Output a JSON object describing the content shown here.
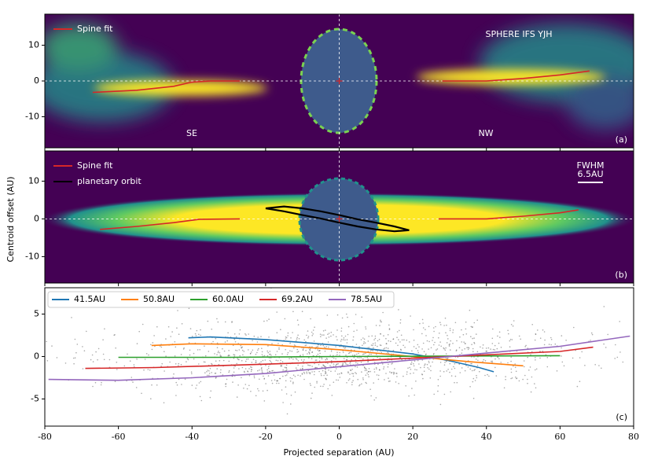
{
  "chart_data": [
    {
      "type": "line",
      "xlim": [
        -80,
        80
      ],
      "xticks": [
        -80,
        -60,
        -40,
        -20,
        0,
        20,
        40,
        60,
        80
      ],
      "ylim": [
        -18.7,
        18.7
      ],
      "yticks": [
        -10,
        0,
        10
      ],
      "annotations": [
        "SPHERE IFS YJH",
        "SE",
        "NW",
        "(a)"
      ],
      "series": [
        {
          "name": "Spine fit",
          "color": "#d62728",
          "x": [
            -67,
            -55,
            -45,
            -40,
            -35,
            -27,
            null,
            28,
            40,
            50,
            60,
            68
          ],
          "values": [
            -3.2,
            -2.6,
            -1.5,
            -0.3,
            0,
            0,
            null,
            0,
            0,
            0.7,
            1.7,
            2.8
          ]
        }
      ]
    },
    {
      "type": "line",
      "xlim": [
        -80,
        80
      ],
      "xticks": [
        -80,
        -60,
        -40,
        -20,
        0,
        20,
        40,
        60,
        80
      ],
      "ylim": [
        -17,
        18
      ],
      "yticks": [
        -10,
        0,
        10
      ],
      "ylabel": "Centroid offset (AU)",
      "annotations": [
        "FWHM",
        "6.5AU",
        "(b)"
      ],
      "series": [
        {
          "name": "Spine fit",
          "color": "#d62728",
          "x": [
            -65,
            -55,
            -45,
            -38,
            -27,
            null,
            27,
            40,
            50,
            60,
            65
          ],
          "values": [
            -2.8,
            -2,
            -1,
            -0.1,
            0,
            null,
            0,
            0,
            0.7,
            1.6,
            2.4
          ]
        },
        {
          "name": "planetary orbit",
          "color": "#000000",
          "x": [
            -20,
            -15,
            -10,
            -5,
            0,
            5,
            10,
            15,
            19,
            15,
            10,
            5,
            0,
            -5,
            -10,
            -15,
            -20
          ],
          "values": [
            2.8,
            3.3,
            2.8,
            2,
            1,
            -0.1,
            -1,
            -2,
            -3,
            -3.3,
            -2.8,
            -2,
            -1,
            0.1,
            1,
            2,
            2.8
          ]
        }
      ]
    },
    {
      "type": "line",
      "xlim": [
        -80,
        80
      ],
      "xticks": [
        -80,
        -60,
        -40,
        -20,
        0,
        20,
        40,
        60,
        80
      ],
      "ylim": [
        -8.2,
        8.1
      ],
      "yticks": [
        -5,
        0,
        5
      ],
      "xlabel": "Projected separation (AU)",
      "annotations": [
        "(c)"
      ],
      "series": [
        {
          "name": "41.5AU",
          "color": "#1f77b4",
          "x": [
            -41,
            -35,
            -20,
            0,
            20,
            30,
            38,
            42
          ],
          "values": [
            2.2,
            2.3,
            2,
            1.3,
            0.3,
            -0.5,
            -1.3,
            -1.8
          ]
        },
        {
          "name": "50.8AU",
          "color": "#ff7f0e",
          "x": [
            -51,
            -40,
            -20,
            0,
            20,
            35,
            50
          ],
          "values": [
            1.3,
            1.5,
            1.4,
            0.8,
            0,
            -0.6,
            -1.1
          ]
        },
        {
          "name": "60.0AU",
          "color": "#2ca02c",
          "x": [
            -60,
            -30,
            0,
            30,
            60
          ],
          "values": [
            -0.1,
            -0.1,
            0,
            0.05,
            0.1
          ]
        },
        {
          "name": "69.2AU",
          "color": "#d62728",
          "x": [
            -69,
            -50,
            -20,
            0,
            20,
            40,
            60,
            69
          ],
          "values": [
            -1.4,
            -1.3,
            -0.9,
            -0.6,
            -0.2,
            0.2,
            0.6,
            1.1
          ]
        },
        {
          "name": "78.5AU",
          "color": "#9467bd",
          "x": [
            -79,
            -60,
            -40,
            -20,
            0,
            20,
            40,
            60,
            79
          ],
          "values": [
            -2.7,
            -2.8,
            -2.5,
            -2,
            -1.2,
            -0.4,
            0.4,
            1.2,
            2.4
          ]
        }
      ]
    }
  ]
}
